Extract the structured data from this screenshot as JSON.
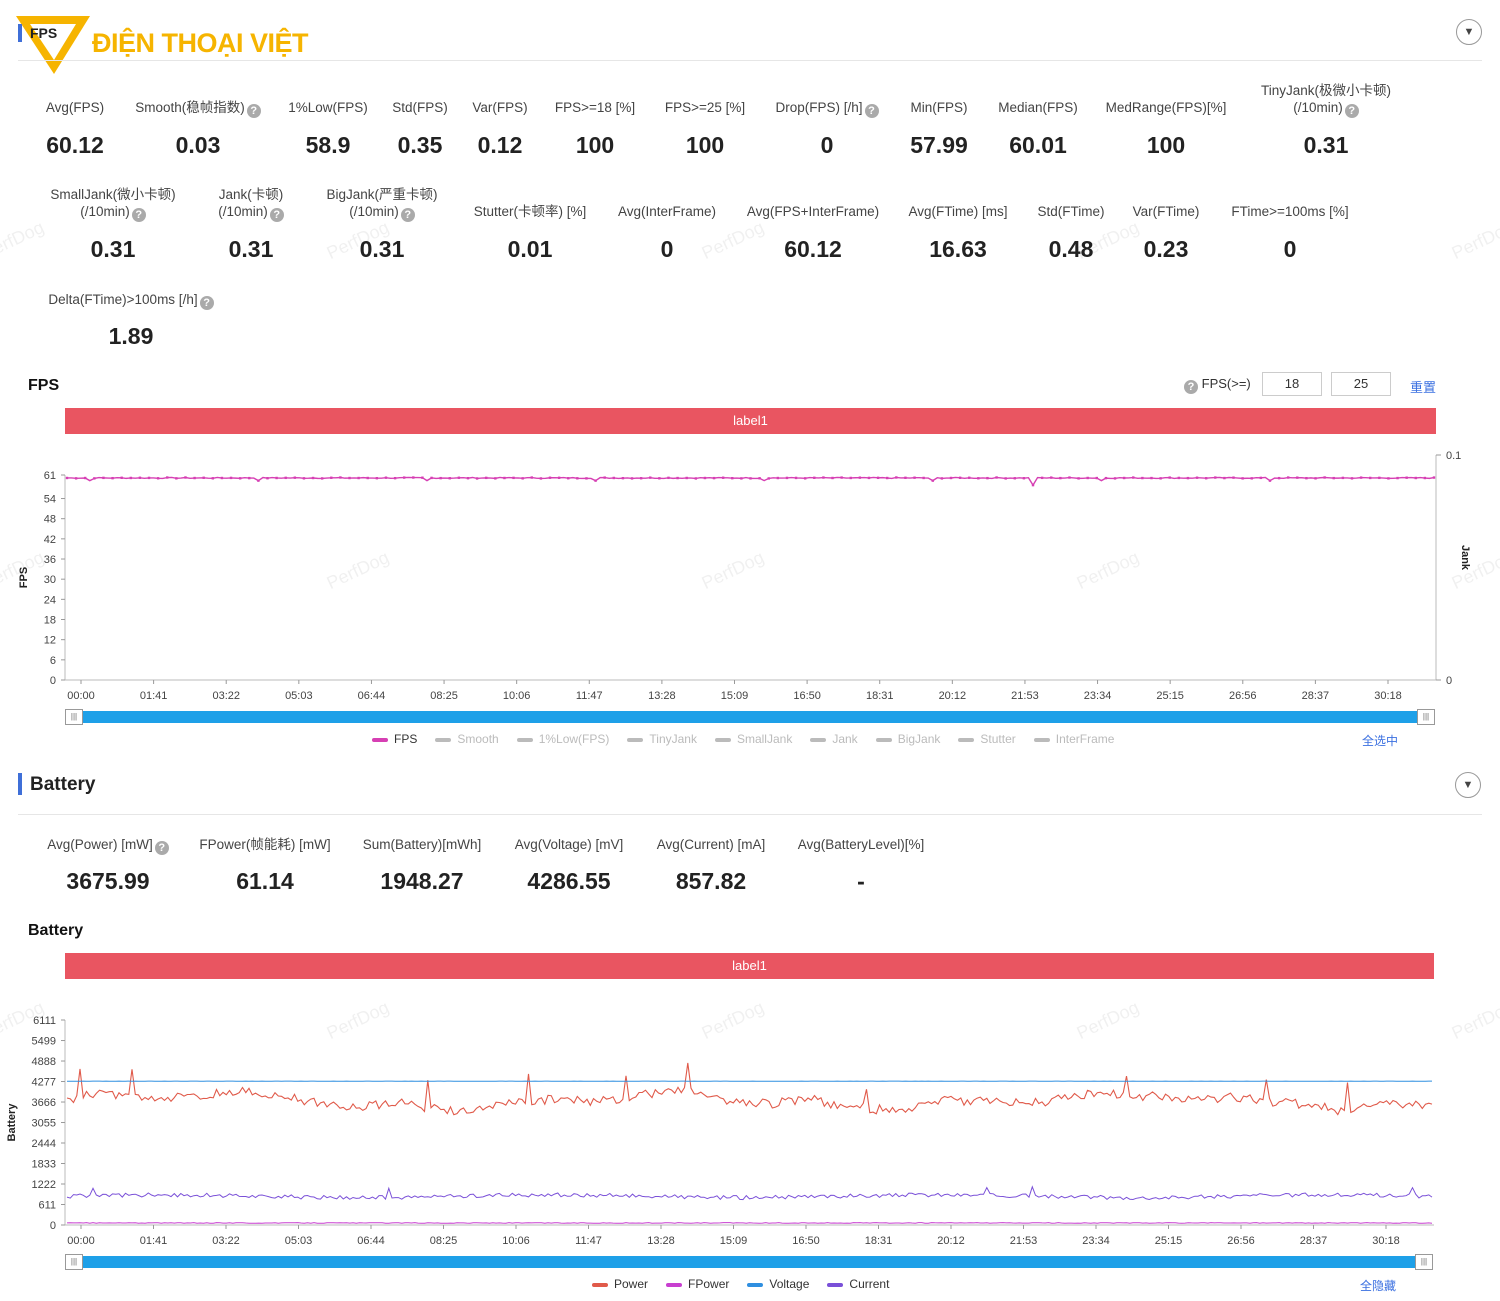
{
  "logo": {
    "text": "ĐIỆN THOẠI VIỆT"
  },
  "fps_section": {
    "title": "FPS",
    "stats_row1": [
      {
        "label": "Avg(FPS)",
        "value": "60.12",
        "help": false
      },
      {
        "label": "Smooth(稳帧指数)",
        "value": "0.03",
        "help": true
      },
      {
        "label": "1%Low(FPS)",
        "value": "58.9",
        "help": false
      },
      {
        "label": "Std(FPS)",
        "value": "0.35",
        "help": false
      },
      {
        "label": "Var(FPS)",
        "value": "0.12",
        "help": false
      },
      {
        "label": "FPS>=18 [%]",
        "value": "100",
        "help": false
      },
      {
        "label": "FPS>=25 [%]",
        "value": "100",
        "help": false
      },
      {
        "label": "Drop(FPS) [/h]",
        "value": "0",
        "help": true
      },
      {
        "label": "Min(FPS)",
        "value": "57.99",
        "help": false
      },
      {
        "label": "Median(FPS)",
        "value": "60.01",
        "help": false
      },
      {
        "label": "MedRange(FPS)[%]",
        "value": "100",
        "help": false
      },
      {
        "label": "TinyJank(极微小卡顿)",
        "label2": "(/10min)",
        "value": "0.31",
        "help": true
      }
    ],
    "stats_row2": [
      {
        "label": "SmallJank(微小卡顿)",
        "label2": "(/10min)",
        "value": "0.31",
        "help": true
      },
      {
        "label": "Jank(卡顿)",
        "label2": "(/10min)",
        "value": "0.31",
        "help": true
      },
      {
        "label": "BigJank(严重卡顿)",
        "label2": "(/10min)",
        "value": "0.31",
        "help": true
      },
      {
        "label": "Stutter(卡顿率) [%]",
        "value": "0.01",
        "help": false
      },
      {
        "label": "Avg(InterFrame)",
        "value": "0",
        "help": false
      },
      {
        "label": "Avg(FPS+InterFrame)",
        "value": "60.12",
        "help": false
      },
      {
        "label": "Avg(FTime) [ms]",
        "value": "16.63",
        "help": false
      },
      {
        "label": "Std(FTime)",
        "value": "0.48",
        "help": false
      },
      {
        "label": "Var(FTime)",
        "value": "0.23",
        "help": false
      },
      {
        "label": "FTime>=100ms [%]",
        "value": "0",
        "help": false
      }
    ],
    "stats_row3": [
      {
        "label": "Delta(FTime)>100ms [/h]",
        "value": "1.89",
        "help": true
      }
    ],
    "chart_title": "FPS",
    "threshold_label": "FPS(>=)",
    "threshold1": "18",
    "threshold2": "25",
    "reset_label": "重置",
    "label_bar": "label1",
    "select_all": "全选中",
    "legend": [
      {
        "name": "FPS",
        "color": "#d63fb3",
        "active": true
      },
      {
        "name": "Smooth",
        "color": "#bbbbbb",
        "active": false
      },
      {
        "name": "1%Low(FPS)",
        "color": "#bbbbbb",
        "active": false
      },
      {
        "name": "TinyJank",
        "color": "#bbbbbb",
        "active": false
      },
      {
        "name": "SmallJank",
        "color": "#bbbbbb",
        "active": false
      },
      {
        "name": "Jank",
        "color": "#bbbbbb",
        "active": false
      },
      {
        "name": "BigJank",
        "color": "#bbbbbb",
        "active": false
      },
      {
        "name": "Stutter",
        "color": "#bbbbbb",
        "active": false
      },
      {
        "name": "InterFrame",
        "color": "#bbbbbb",
        "active": false
      }
    ]
  },
  "battery_section": {
    "title": "Battery",
    "stats": [
      {
        "label": "Avg(Power) [mW]",
        "value": "3675.99",
        "help": true
      },
      {
        "label": "FPower(帧能耗) [mW]",
        "value": "61.14",
        "help": false
      },
      {
        "label": "Sum(Battery)[mWh]",
        "value": "1948.27",
        "help": false
      },
      {
        "label": "Avg(Voltage) [mV]",
        "value": "4286.55",
        "help": false
      },
      {
        "label": "Avg(Current) [mA]",
        "value": "857.82",
        "help": false
      },
      {
        "label": "Avg(BatteryLevel)[%]",
        "value": "-",
        "help": false
      }
    ],
    "chart_title": "Battery",
    "label_bar": "label1",
    "select_all": "全隐藏",
    "legend": [
      {
        "name": "Power",
        "color": "#e05a4a",
        "active": true
      },
      {
        "name": "FPower",
        "color": "#c83fd0",
        "active": true
      },
      {
        "name": "Voltage",
        "color": "#2f8fe0",
        "active": true
      },
      {
        "name": "Current",
        "color": "#7a50d8",
        "active": true
      }
    ]
  },
  "watermark": "PerfDog",
  "chart_data": [
    {
      "type": "line",
      "title": "FPS",
      "ylabel": "FPS",
      "y2label": "Jank",
      "ylim": [
        0,
        61
      ],
      "y2lim": [
        0,
        0.1
      ],
      "yticks": [
        0,
        6,
        12,
        18,
        24,
        30,
        36,
        42,
        48,
        54,
        61
      ],
      "y2ticks": [
        "0",
        "0.1"
      ],
      "xticks": [
        "00:00",
        "01:41",
        "03:22",
        "05:03",
        "06:44",
        "08:25",
        "10:06",
        "11:47",
        "13:28",
        "15:09",
        "16:50",
        "18:31",
        "20:12",
        "21:53",
        "23:34",
        "25:15",
        "26:56",
        "28:37",
        "30:18"
      ],
      "series": [
        {
          "name": "FPS",
          "color": "#d63fb3",
          "mean": 60.12,
          "min": 57.99
        }
      ]
    },
    {
      "type": "line",
      "title": "Battery",
      "ylabel": "Battery",
      "ylim": [
        0,
        6111
      ],
      "yticks": [
        0,
        611,
        1222,
        1833,
        2444,
        3055,
        3666,
        4277,
        4888,
        5499,
        6111
      ],
      "xticks": [
        "00:00",
        "01:41",
        "03:22",
        "05:03",
        "06:44",
        "08:25",
        "10:06",
        "11:47",
        "13:28",
        "15:09",
        "16:50",
        "18:31",
        "20:12",
        "21:53",
        "23:34",
        "25:15",
        "26:56",
        "28:37",
        "30:18"
      ],
      "series": [
        {
          "name": "Power",
          "color": "#e05a4a",
          "mean": 3675.99
        },
        {
          "name": "FPower",
          "color": "#c83fd0",
          "mean": 61.14
        },
        {
          "name": "Voltage",
          "color": "#2f8fe0",
          "mean": 4286.55
        },
        {
          "name": "Current",
          "color": "#7a50d8",
          "mean": 857.82
        }
      ]
    }
  ]
}
